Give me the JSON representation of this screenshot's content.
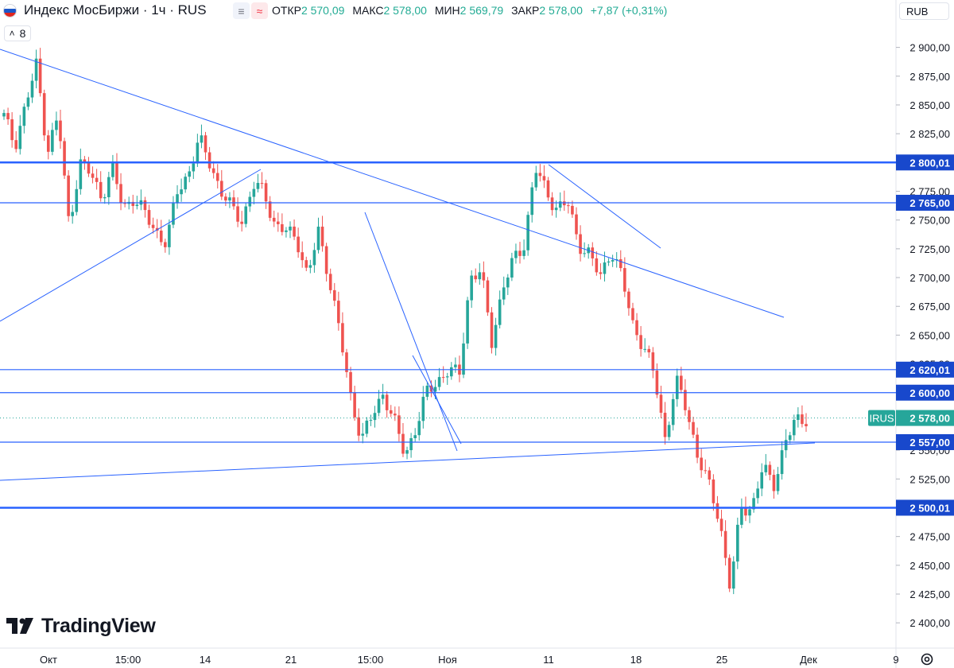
{
  "header": {
    "title": "Индекс МосБиржи · 1ч · RUS",
    "ohlc": [
      {
        "label": "ОТКР",
        "value": "2 570,09"
      },
      {
        "label": "МАКС",
        "value": "2 578,00"
      },
      {
        "label": "МИН",
        "value": "2 569,79"
      },
      {
        "label": "ЗАКР",
        "value": "2 578,00"
      }
    ],
    "change": "+7,87 (+0,31%)",
    "indicator_count": "8",
    "currency": "RUB"
  },
  "branding": {
    "logo_text": "TradingView"
  },
  "colors": {
    "up": "#26a69a",
    "down": "#ef5350",
    "line": "#2962ff",
    "label_green": "#22ab94",
    "level_label": "#1848cc"
  },
  "icons": {
    "flag": "russia-flag-icon",
    "compare": "compare-icon",
    "wave": "wave-icon",
    "chevron": "chevron-icon",
    "logo": "tradingview-logo-icon",
    "settings": "gear-icon"
  },
  "chart_data": {
    "type": "candlestick",
    "y_axis": {
      "range": [
        2385,
        2915
      ],
      "ticks": [
        2900,
        2875,
        2850,
        2825,
        2775,
        2750,
        2725,
        2700,
        2675,
        2650,
        2625,
        2550,
        2525,
        2475,
        2450,
        2425,
        2400
      ],
      "tick_labels": [
        "2 900,00",
        "2 875,00",
        "2 850,00",
        "2 825,00",
        "2 775,00",
        "2 750,00",
        "2 725,00",
        "2 700,00",
        "2 675,00",
        "2 650,00",
        "2 625,00",
        "2 550,00",
        "2 525,00",
        "2 475,00",
        "2 450,00",
        "2 425,00",
        "2 400,00"
      ]
    },
    "x_axis": {
      "labels": [
        "Окт",
        "15:00",
        "14",
        "21",
        "15:00",
        "Ноя",
        "11",
        "18",
        "25",
        "Дек",
        "9"
      ]
    },
    "horizontal_levels": [
      {
        "value": 2800.01,
        "label": "2 800,01",
        "weight": "thick"
      },
      {
        "value": 2765.0,
        "label": "2 765,00",
        "weight": "thin"
      },
      {
        "value": 2620.01,
        "label": "2 620,01",
        "weight": "thin"
      },
      {
        "value": 2600.0,
        "label": "2 600,00",
        "weight": "thin"
      },
      {
        "value": 2557.0,
        "label": "2 557,00",
        "weight": "thin"
      },
      {
        "value": 2500.01,
        "label": "2 500,01",
        "weight": "thick"
      }
    ],
    "last_price": {
      "symbol": "IRUS",
      "value": 2578.0,
      "label": "2 578,00"
    },
    "price_path": [
      2840,
      2815,
      2850,
      2885,
      2810,
      2840,
      2745,
      2800,
      2790,
      2770,
      2795,
      2760,
      2770,
      2755,
      2740,
      2730,
      2775,
      2790,
      2820,
      2800,
      2775,
      2760,
      2750,
      2780,
      2775,
      2745,
      2740,
      2735,
      2700,
      2740,
      2700,
      2650,
      2595,
      2560,
      2580,
      2600,
      2575,
      2545,
      2570,
      2600,
      2610,
      2620,
      2615,
      2700,
      2705,
      2645,
      2690,
      2715,
      2730,
      2795,
      2775,
      2760,
      2765,
      2730,
      2720,
      2700,
      2725,
      2700,
      2660,
      2640,
      2615,
      2560,
      2610,
      2585,
      2545,
      2520,
      2490,
      2430,
      2500,
      2500,
      2535,
      2520,
      2555,
      2575,
      2578
    ]
  }
}
